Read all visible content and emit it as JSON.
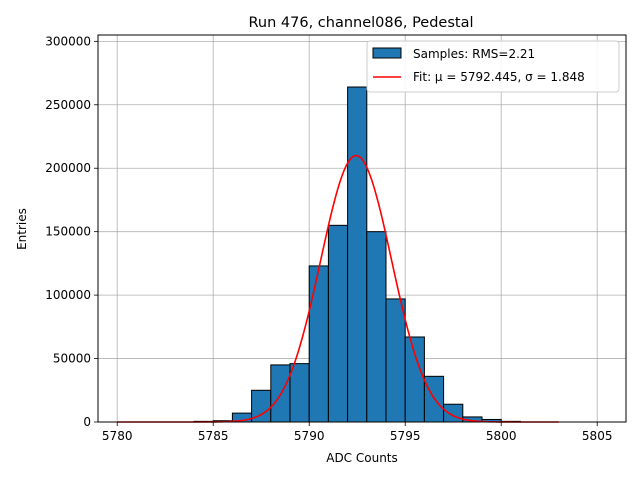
{
  "chart_data": {
    "type": "bar",
    "title": "Run 476, channel086, Pedestal",
    "xlabel": "ADC Counts",
    "ylabel": "Entries",
    "xlim": [
      5779,
      5806.5
    ],
    "ylim": [
      0,
      305000
    ],
    "xticks": [
      5780,
      5785,
      5790,
      5795,
      5800,
      5805
    ],
    "yticks": [
      0,
      50000,
      100000,
      150000,
      200000,
      250000,
      300000
    ],
    "grid": true,
    "legend_position": "top-right",
    "bin_width": 1,
    "bins": [
      {
        "x": 5784,
        "count": 500
      },
      {
        "x": 5785,
        "count": 1000
      },
      {
        "x": 5786,
        "count": 7000
      },
      {
        "x": 5787,
        "count": 25000
      },
      {
        "x": 5788,
        "count": 45000
      },
      {
        "x": 5789,
        "count": 46000
      },
      {
        "x": 5790,
        "count": 123000
      },
      {
        "x": 5791,
        "count": 155000
      },
      {
        "x": 5792,
        "count": 264000
      },
      {
        "x": 5793,
        "count": 150000
      },
      {
        "x": 5794,
        "count": 97000
      },
      {
        "x": 5795,
        "count": 67000
      },
      {
        "x": 5796,
        "count": 36000
      },
      {
        "x": 5797,
        "count": 14000
      },
      {
        "x": 5798,
        "count": 4000
      },
      {
        "x": 5799,
        "count": 2000
      },
      {
        "x": 5800,
        "count": 500
      }
    ],
    "series": [
      {
        "name": "Samples: RMS=2.21",
        "kind": "histogram",
        "color": "#1f77b4"
      },
      {
        "name": "Fit: μ = 5792.445, σ = 1.848",
        "kind": "gaussian-fit",
        "color": "#ff0000",
        "mu": 5792.445,
        "sigma": 1.848,
        "amplitude": 210000,
        "x_range": [
          5780,
          5803
        ]
      }
    ]
  }
}
